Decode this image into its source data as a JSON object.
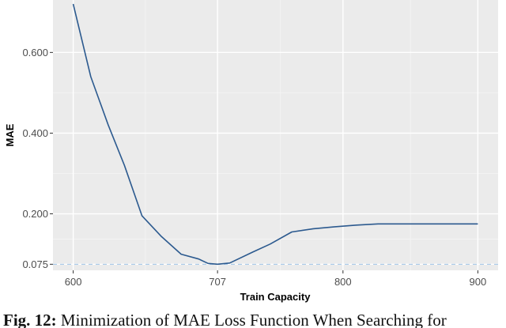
{
  "chart_data": {
    "type": "line",
    "xlabel": "Train Capacity",
    "ylabel": "MAE",
    "xlim": [
      585,
      915
    ],
    "ylim": [
      0.06,
      0.73
    ],
    "x_ticks": [
      600,
      707,
      800,
      900
    ],
    "x_tick_labels": [
      "600",
      "707",
      "800",
      "900"
    ],
    "y_ticks": [
      0.075,
      0.2,
      0.4,
      0.6
    ],
    "y_tick_labels": [
      "0.075",
      "0.200",
      "0.400",
      "0.600"
    ],
    "grid": true,
    "background": "#ebebeb",
    "series": [
      {
        "color": "#2c5a8f",
        "x": [
          600,
          613,
          626,
          638,
          651,
          665,
          680,
          693,
          700,
          707,
          716,
          733,
          746,
          762,
          778,
          794,
          810,
          826,
          841,
          857,
          872,
          886,
          900
        ],
        "y": [
          0.72,
          0.54,
          0.42,
          0.32,
          0.195,
          0.145,
          0.1,
          0.088,
          0.077,
          0.075,
          0.078,
          0.105,
          0.125,
          0.155,
          0.163,
          0.168,
          0.172,
          0.175,
          0.175,
          0.175,
          0.175,
          0.175,
          0.175
        ]
      }
    ],
    "reference_line": {
      "y": 0.075,
      "style": "dashed",
      "color": "#9ec3e8"
    }
  },
  "caption": {
    "label": "Fig. 12:",
    "text": " Minimization of MAE Loss Function When Searching for"
  }
}
